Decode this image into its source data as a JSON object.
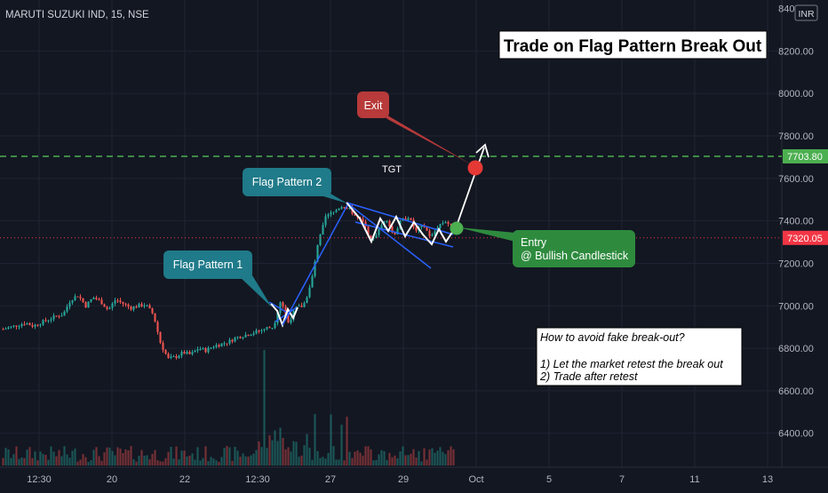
{
  "header": {
    "symbol_label": "MARUTI SUZUKI IND, 15, NSE",
    "currency_badge": "INR"
  },
  "colors": {
    "background": "#131722",
    "grid": "#1f2433",
    "axis_text": "#b2b5be",
    "up": "#26a69a",
    "down": "#ef5350",
    "target_line": "#4caf50",
    "current_line": "#f23645",
    "trend_line": "#2962ff"
  },
  "chart_data": {
    "type": "candlestick",
    "title": "Trade on Flag Pattern Break Out",
    "xlabel": "",
    "ylabel": "",
    "ylim": [
      6240,
      8440
    ],
    "y_ticks": [
      6400,
      6600,
      6800,
      7000,
      7200,
      7400,
      7600,
      7800,
      8000,
      8200
    ],
    "x_ticks": [
      "12:30",
      "20",
      "22",
      "12:30",
      "27",
      "29",
      "Oct",
      "5",
      "7",
      "11",
      "13"
    ],
    "price_labels": {
      "target": 7703.8,
      "current": 7320.05
    },
    "price_path": [
      6890,
      6900,
      6910,
      6920,
      6905,
      6920,
      6935,
      6950,
      6960,
      7030,
      7050,
      7000,
      7040,
      7020,
      6980,
      7030,
      7010,
      6990,
      7000,
      7005,
      6960,
      6820,
      6750,
      6760,
      6780,
      6770,
      6800,
      6790,
      6810,
      6820,
      6830,
      6850,
      6860,
      6870,
      6880,
      6895,
      6900,
      7030,
      6920,
      6990,
      7000,
      7100,
      7300,
      7420,
      7440,
      7470,
      7460,
      7420,
      7390,
      7310,
      7350,
      7420,
      7330,
      7400,
      7420,
      7350,
      7380,
      7320,
      7380,
      7400,
      7360
    ],
    "annotations": {
      "flag_1": "Flag Pattern 1",
      "flag_2": "Flag Pattern 2",
      "exit": "Exit",
      "target": "TGT",
      "entry_line1": "Entry",
      "entry_line2": "@ Bullish Candlestick",
      "note_title": "How to avoid fake break-out?",
      "note_item1": "1) Let the market retest the break out",
      "note_item2": "2) Trade after retest"
    }
  }
}
